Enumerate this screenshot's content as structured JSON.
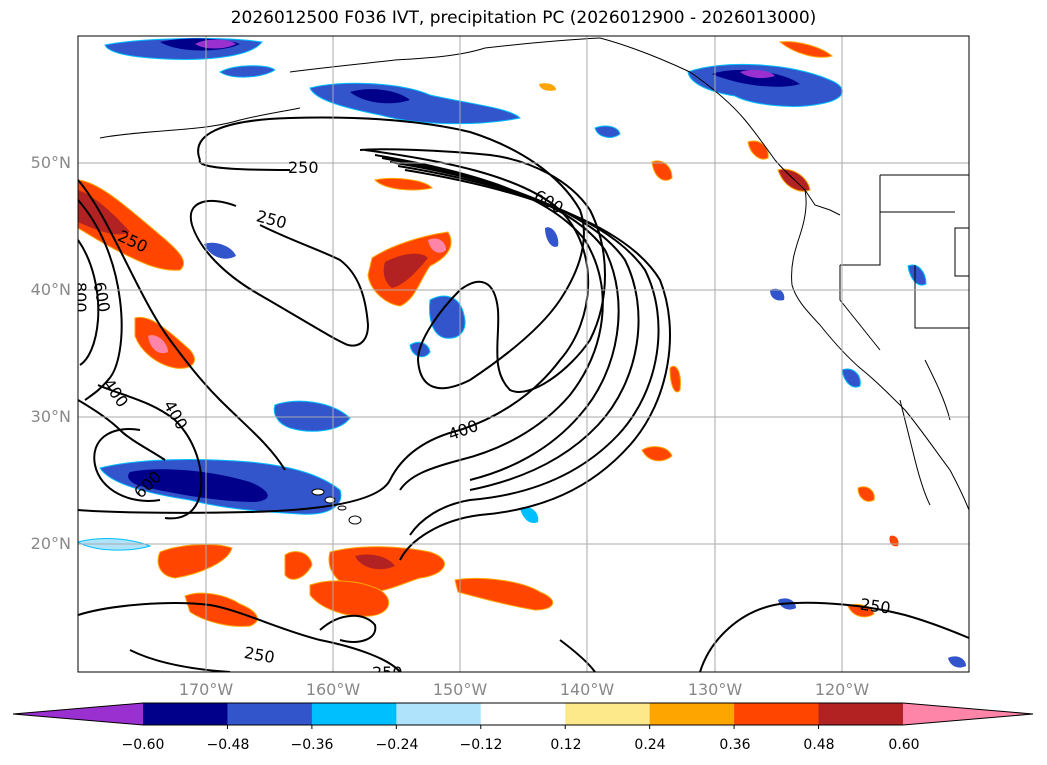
{
  "title": "2026012500 F036 IVT, precipitation PC (2026012900 - 2026013000)",
  "map": {
    "lat_labels": [
      "50°N",
      "40°N",
      "30°N",
      "20°N"
    ],
    "lon_labels": [
      "170°W",
      "160°W",
      "150°W",
      "140°W",
      "130°W",
      "120°W"
    ],
    "contour_labels": [
      "250",
      "250",
      "250",
      "600",
      "600",
      "800",
      "400",
      "400",
      "600",
      "400",
      "250",
      "250",
      "250"
    ],
    "grid": true
  },
  "colorbar": {
    "colors": [
      "#9b30d0",
      "#00008b",
      "#3355cc",
      "#00bfff",
      "#aee3fb",
      "#ffffff",
      "#fde98a",
      "#ffa500",
      "#ff4500",
      "#b22222",
      "#ff85a8"
    ],
    "tick_labels": [
      "−0.60",
      "−0.48",
      "−0.36",
      "−0.24",
      "−0.12",
      "0.12",
      "0.24",
      "0.36",
      "0.48",
      "0.60"
    ]
  }
}
